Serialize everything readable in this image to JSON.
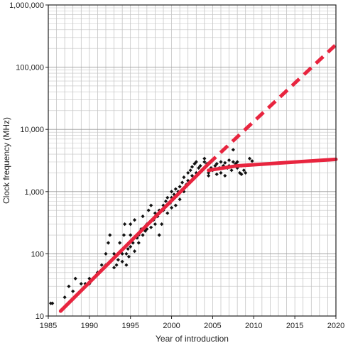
{
  "chart_data": {
    "type": "scatter",
    "title": "",
    "xlabel": "Year of introduction",
    "ylabel": "Clock frequency (MHz)",
    "y_scale": "log",
    "xlim": [
      1985,
      2020
    ],
    "ylim": [
      10,
      1000000
    ],
    "grid": true,
    "x_ticks": [
      "1985",
      "1990",
      "1995",
      "2000",
      "2005",
      "2010",
      "2015",
      "2020"
    ],
    "y_ticks": [
      "10",
      "100",
      "1,000",
      "10,000",
      "100,000",
      "1,000,000"
    ],
    "x_tick_values": [
      1985,
      1990,
      1995,
      2000,
      2005,
      2010,
      2015,
      2020
    ],
    "y_tick_values": [
      10,
      100,
      1000,
      10000,
      100000,
      1000000
    ],
    "series": [
      {
        "type": "scatter",
        "color": "#111111",
        "points": [
          [
            1985.3,
            16
          ],
          [
            1985.5,
            16
          ],
          [
            1987.0,
            20
          ],
          [
            1987.5,
            30
          ],
          [
            1988.0,
            25
          ],
          [
            1988.3,
            40
          ],
          [
            1989.0,
            33
          ],
          [
            1989.5,
            33
          ],
          [
            1990.0,
            40
          ],
          [
            1990.0,
            33
          ],
          [
            1990.5,
            40
          ],
          [
            1991.0,
            50
          ],
          [
            1991.5,
            66
          ],
          [
            1992.0,
            66
          ],
          [
            1992.0,
            100
          ],
          [
            1992.3,
            150
          ],
          [
            1992.5,
            200
          ],
          [
            1993.0,
            60
          ],
          [
            1993.0,
            100
          ],
          [
            1993.3,
            66
          ],
          [
            1993.5,
            80
          ],
          [
            1993.7,
            150
          ],
          [
            1994.0,
            75
          ],
          [
            1994.0,
            100
          ],
          [
            1994.2,
            200
          ],
          [
            1994.3,
            300
          ],
          [
            1994.5,
            100
          ],
          [
            1994.5,
            66
          ],
          [
            1994.7,
            120
          ],
          [
            1994.8,
            90
          ],
          [
            1995.0,
            130
          ],
          [
            1995.0,
            200
          ],
          [
            1995.0,
            300
          ],
          [
            1995.3,
            150
          ],
          [
            1995.5,
            110
          ],
          [
            1995.5,
            350
          ],
          [
            1995.8,
            180
          ],
          [
            1996.0,
            150
          ],
          [
            1996.0,
            200
          ],
          [
            1996.3,
            250
          ],
          [
            1996.5,
            200
          ],
          [
            1996.5,
            400
          ],
          [
            1996.8,
            233
          ],
          [
            1997.0,
            250
          ],
          [
            1997.0,
            300
          ],
          [
            1997.2,
            500
          ],
          [
            1997.5,
            266
          ],
          [
            1997.5,
            600
          ],
          [
            1997.8,
            350
          ],
          [
            1998.0,
            300
          ],
          [
            1998.0,
            450
          ],
          [
            1998.3,
            400
          ],
          [
            1998.5,
            200
          ],
          [
            1998.5,
            500
          ],
          [
            1998.8,
            300
          ],
          [
            1999.0,
            500
          ],
          [
            1999.0,
            600
          ],
          [
            1999.3,
            700
          ],
          [
            1999.5,
            450
          ],
          [
            1999.5,
            800
          ],
          [
            1999.8,
            650
          ],
          [
            2000.0,
            550
          ],
          [
            2000.0,
            800
          ],
          [
            2000.0,
            1000
          ],
          [
            2000.3,
            900
          ],
          [
            2000.5,
            600
          ],
          [
            2000.5,
            1100
          ],
          [
            2000.8,
            1000
          ],
          [
            2001.0,
            750
          ],
          [
            2001.0,
            1200
          ],
          [
            2001.3,
            1400
          ],
          [
            2001.5,
            1000
          ],
          [
            2001.5,
            1700
          ],
          [
            2001.8,
            1300
          ],
          [
            2002.0,
            1500
          ],
          [
            2002.0,
            2000
          ],
          [
            2002.3,
            2200
          ],
          [
            2002.5,
            1800
          ],
          [
            2002.5,
            2500
          ],
          [
            2002.8,
            2800
          ],
          [
            2003.0,
            2000
          ],
          [
            2003.0,
            3000
          ],
          [
            2003.3,
            2400
          ],
          [
            2003.5,
            2600
          ],
          [
            2004.0,
            3000
          ],
          [
            2004.0,
            3400
          ],
          [
            2004.3,
            2800
          ],
          [
            2004.5,
            2000
          ],
          [
            2004.5,
            1800
          ],
          [
            2004.8,
            2400
          ],
          [
            2005.0,
            3200
          ],
          [
            2005.0,
            2200
          ],
          [
            2005.3,
            2600
          ],
          [
            2005.5,
            1900
          ],
          [
            2005.5,
            2800
          ],
          [
            2005.8,
            2400
          ],
          [
            2006.0,
            3000
          ],
          [
            2006.0,
            2000
          ],
          [
            2006.3,
            2600
          ],
          [
            2006.5,
            1800
          ],
          [
            2006.5,
            2900
          ],
          [
            2006.8,
            2400
          ],
          [
            2007.0,
            3200
          ],
          [
            2007.0,
            2600
          ],
          [
            2007.3,
            2200
          ],
          [
            2007.5,
            3000
          ],
          [
            2007.5,
            4700
          ],
          [
            2007.8,
            2800
          ],
          [
            2008.0,
            2400
          ],
          [
            2008.0,
            3000
          ],
          [
            2008.3,
            2000
          ],
          [
            2008.5,
            2600
          ],
          [
            2008.5,
            1900
          ],
          [
            2008.8,
            2200
          ],
          [
            2009.0,
            2000
          ],
          [
            2009.5,
            3400
          ],
          [
            2009.8,
            3100
          ]
        ]
      },
      {
        "type": "line",
        "style": "solid",
        "color": "#e8253f",
        "points": [
          [
            1986.5,
            12
          ],
          [
            2004.5,
            2800
          ]
        ]
      },
      {
        "type": "line",
        "style": "dashed",
        "color": "#e8253f",
        "points": [
          [
            2004.5,
            2800
          ],
          [
            2020,
            230000
          ]
        ]
      },
      {
        "type": "line",
        "style": "solid",
        "color": "#e8253f",
        "points": [
          [
            2004.5,
            2200
          ],
          [
            2008,
            2600
          ],
          [
            2020,
            3300
          ]
        ]
      }
    ]
  }
}
